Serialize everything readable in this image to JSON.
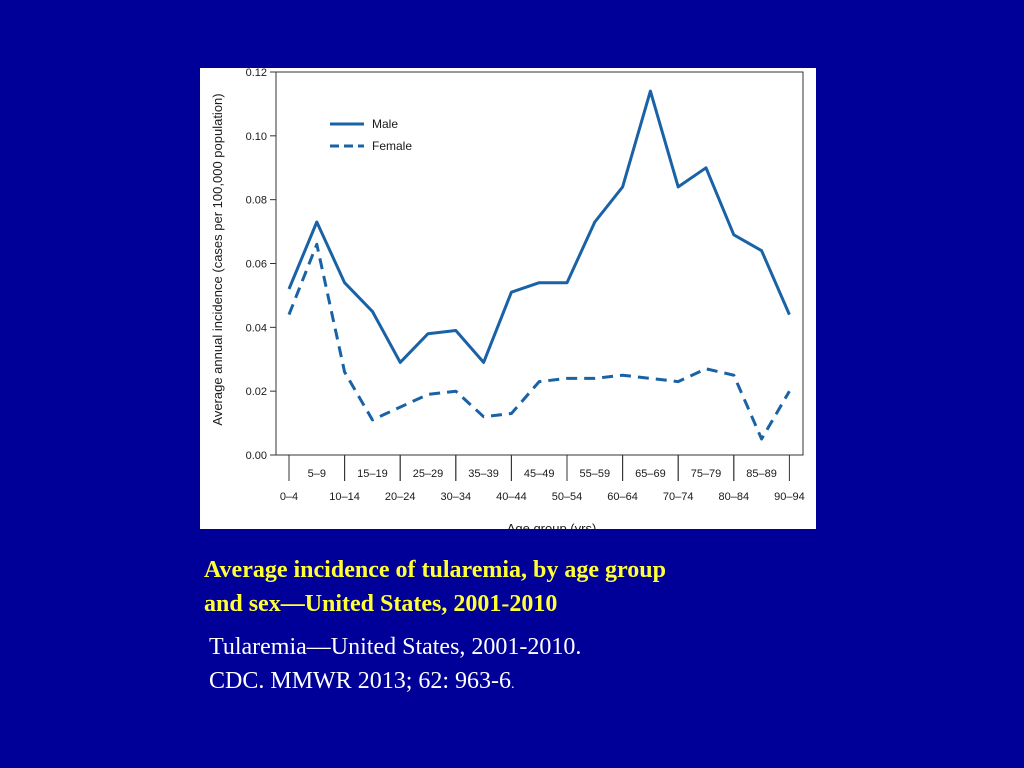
{
  "caption": {
    "title_line1": "Average incidence of tularemia, by age group",
    "title_line2": "and sex—United States, 2001-2010",
    "source_line1": "Tularemia—United States, 2001-2010.",
    "source_line2": "CDC. MMWR 2013; 62: 963-6",
    "source_line2_end": "."
  },
  "colors": {
    "background": "#000099",
    "title": "#ffff33",
    "line": "#1a62a6"
  },
  "chart_data": {
    "type": "line",
    "ylabel": "Average annual incidence (cases per 100,000 population)",
    "xlabel": "Age group (yrs)",
    "ylim": [
      0,
      0.12
    ],
    "y_ticks": [
      "0.00",
      "0.02",
      "0.04",
      "0.06",
      "0.08",
      "0.10",
      "0.12"
    ],
    "categories": [
      "0–4",
      "5–9",
      "10–14",
      "15–19",
      "20–24",
      "25–29",
      "30–34",
      "35–39",
      "40–44",
      "45–49",
      "50–54",
      "55–59",
      "60–64",
      "65–69",
      "70–74",
      "75–79",
      "80–84",
      "85–89",
      "90–94"
    ],
    "legend_position": "top-left",
    "grid": false,
    "series": [
      {
        "name": "Male",
        "style": "solid",
        "values": [
          0.052,
          0.073,
          0.054,
          0.045,
          0.029,
          0.038,
          0.039,
          0.029,
          0.051,
          0.054,
          0.054,
          0.073,
          0.084,
          0.114,
          0.084,
          0.09,
          0.069,
          0.064,
          0.044
        ]
      },
      {
        "name": "Female",
        "style": "dashed",
        "values": [
          0.044,
          0.066,
          0.026,
          0.011,
          0.015,
          0.019,
          0.02,
          0.012,
          0.013,
          0.023,
          0.024,
          0.024,
          0.025,
          0.024,
          0.023,
          0.027,
          0.025,
          0.005,
          0.02
        ]
      }
    ]
  }
}
